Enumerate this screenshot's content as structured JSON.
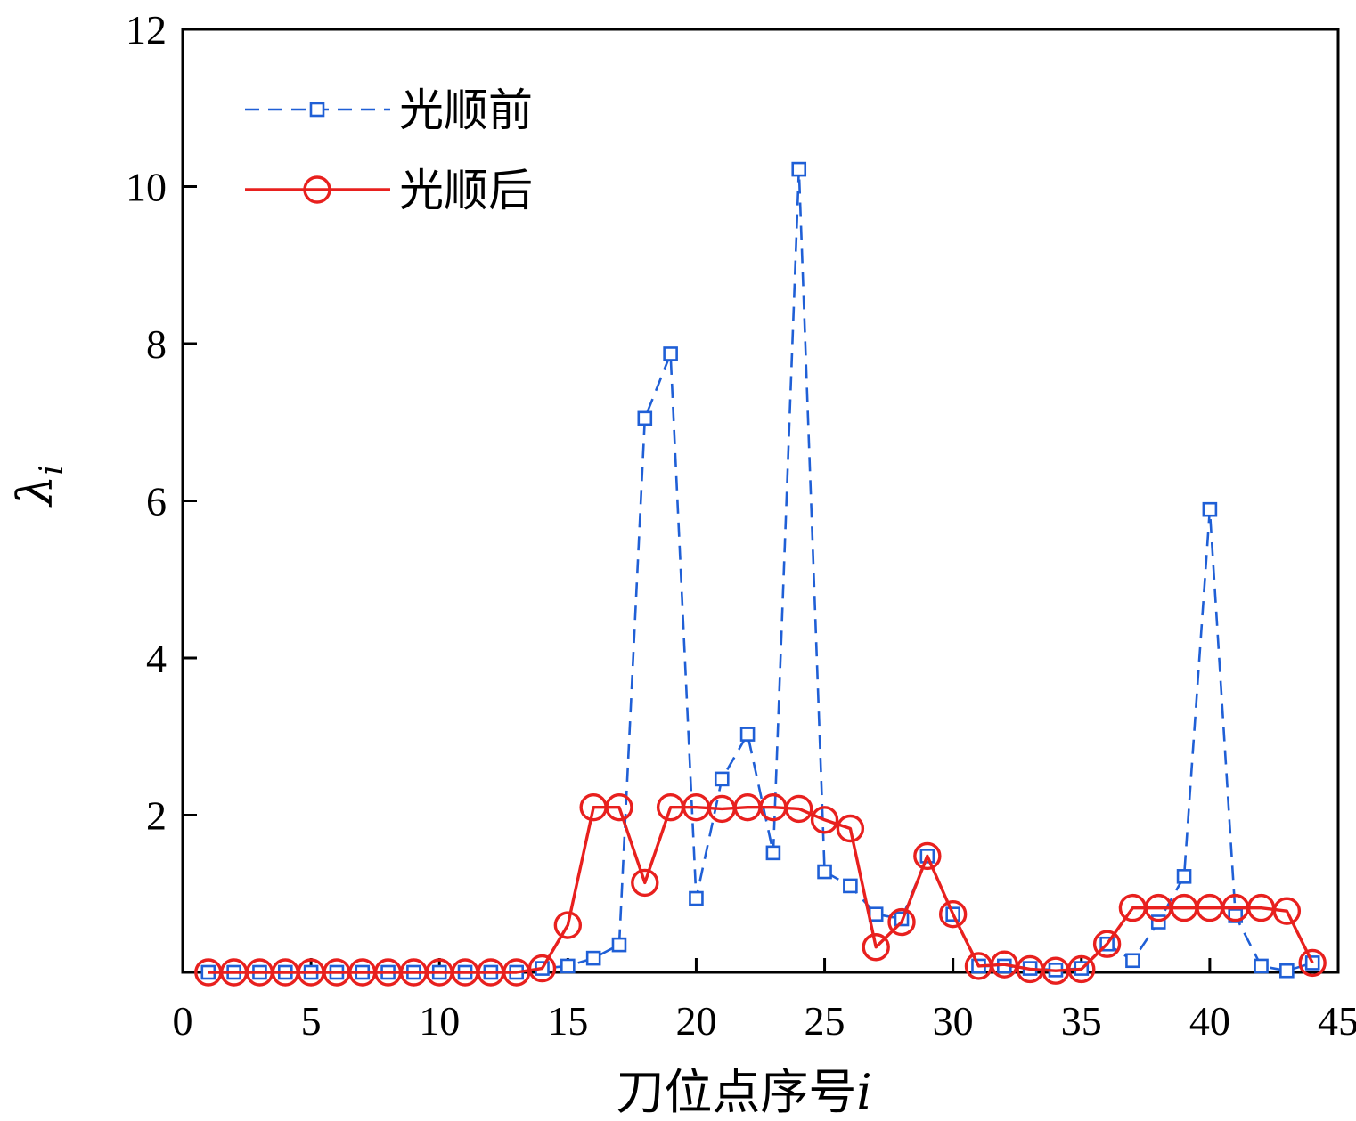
{
  "chart_data": {
    "type": "line",
    "xlabel": "刀位点序号",
    "xlabel_var": "i",
    "ylabel": "λ",
    "ylabel_sub": "i",
    "xlim": [
      0,
      45
    ],
    "ylim": [
      0,
      12
    ],
    "xticks": [
      0,
      5,
      10,
      15,
      20,
      25,
      30,
      35,
      40,
      45
    ],
    "yticks": [
      2,
      4,
      6,
      8,
      10,
      12
    ],
    "grid": false,
    "legend_position": "top-left",
    "x": [
      1,
      2,
      3,
      4,
      5,
      6,
      7,
      8,
      9,
      10,
      11,
      12,
      13,
      14,
      15,
      16,
      17,
      18,
      19,
      20,
      21,
      22,
      23,
      24,
      25,
      26,
      27,
      28,
      29,
      30,
      31,
      32,
      33,
      34,
      35,
      36,
      37,
      38,
      39,
      40,
      41,
      42,
      43,
      44
    ],
    "series": [
      {
        "name": "光顺前",
        "color": "#1f5fd6",
        "line": "dashed",
        "marker": "square",
        "values": [
          0,
          0,
          0,
          0,
          0,
          0,
          0,
          0,
          0,
          0,
          0,
          0,
          0,
          0.05,
          0.08,
          0.18,
          0.35,
          7.05,
          7.87,
          0.94,
          2.46,
          3.03,
          1.52,
          10.22,
          1.28,
          1.1,
          0.74,
          0.68,
          1.48,
          0.74,
          0.08,
          0.08,
          0.05,
          0.03,
          0.05,
          0.36,
          0.15,
          0.64,
          1.22,
          5.89,
          0.72,
          0.08,
          0.02,
          0.12
        ]
      },
      {
        "name": "光顺后",
        "color": "#e8201e",
        "line": "solid",
        "marker": "circle",
        "values": [
          0,
          0,
          0,
          0,
          0,
          0,
          0,
          0,
          0,
          0,
          0,
          0,
          0,
          0.05,
          0.6,
          2.1,
          2.1,
          1.14,
          2.1,
          2.1,
          2.08,
          2.1,
          2.1,
          2.08,
          1.94,
          1.83,
          0.32,
          0.64,
          1.48,
          0.74,
          0.08,
          0.1,
          0.04,
          0.02,
          0.04,
          0.36,
          0.82,
          0.82,
          0.82,
          0.82,
          0.82,
          0.82,
          0.78,
          0.12
        ]
      }
    ]
  }
}
